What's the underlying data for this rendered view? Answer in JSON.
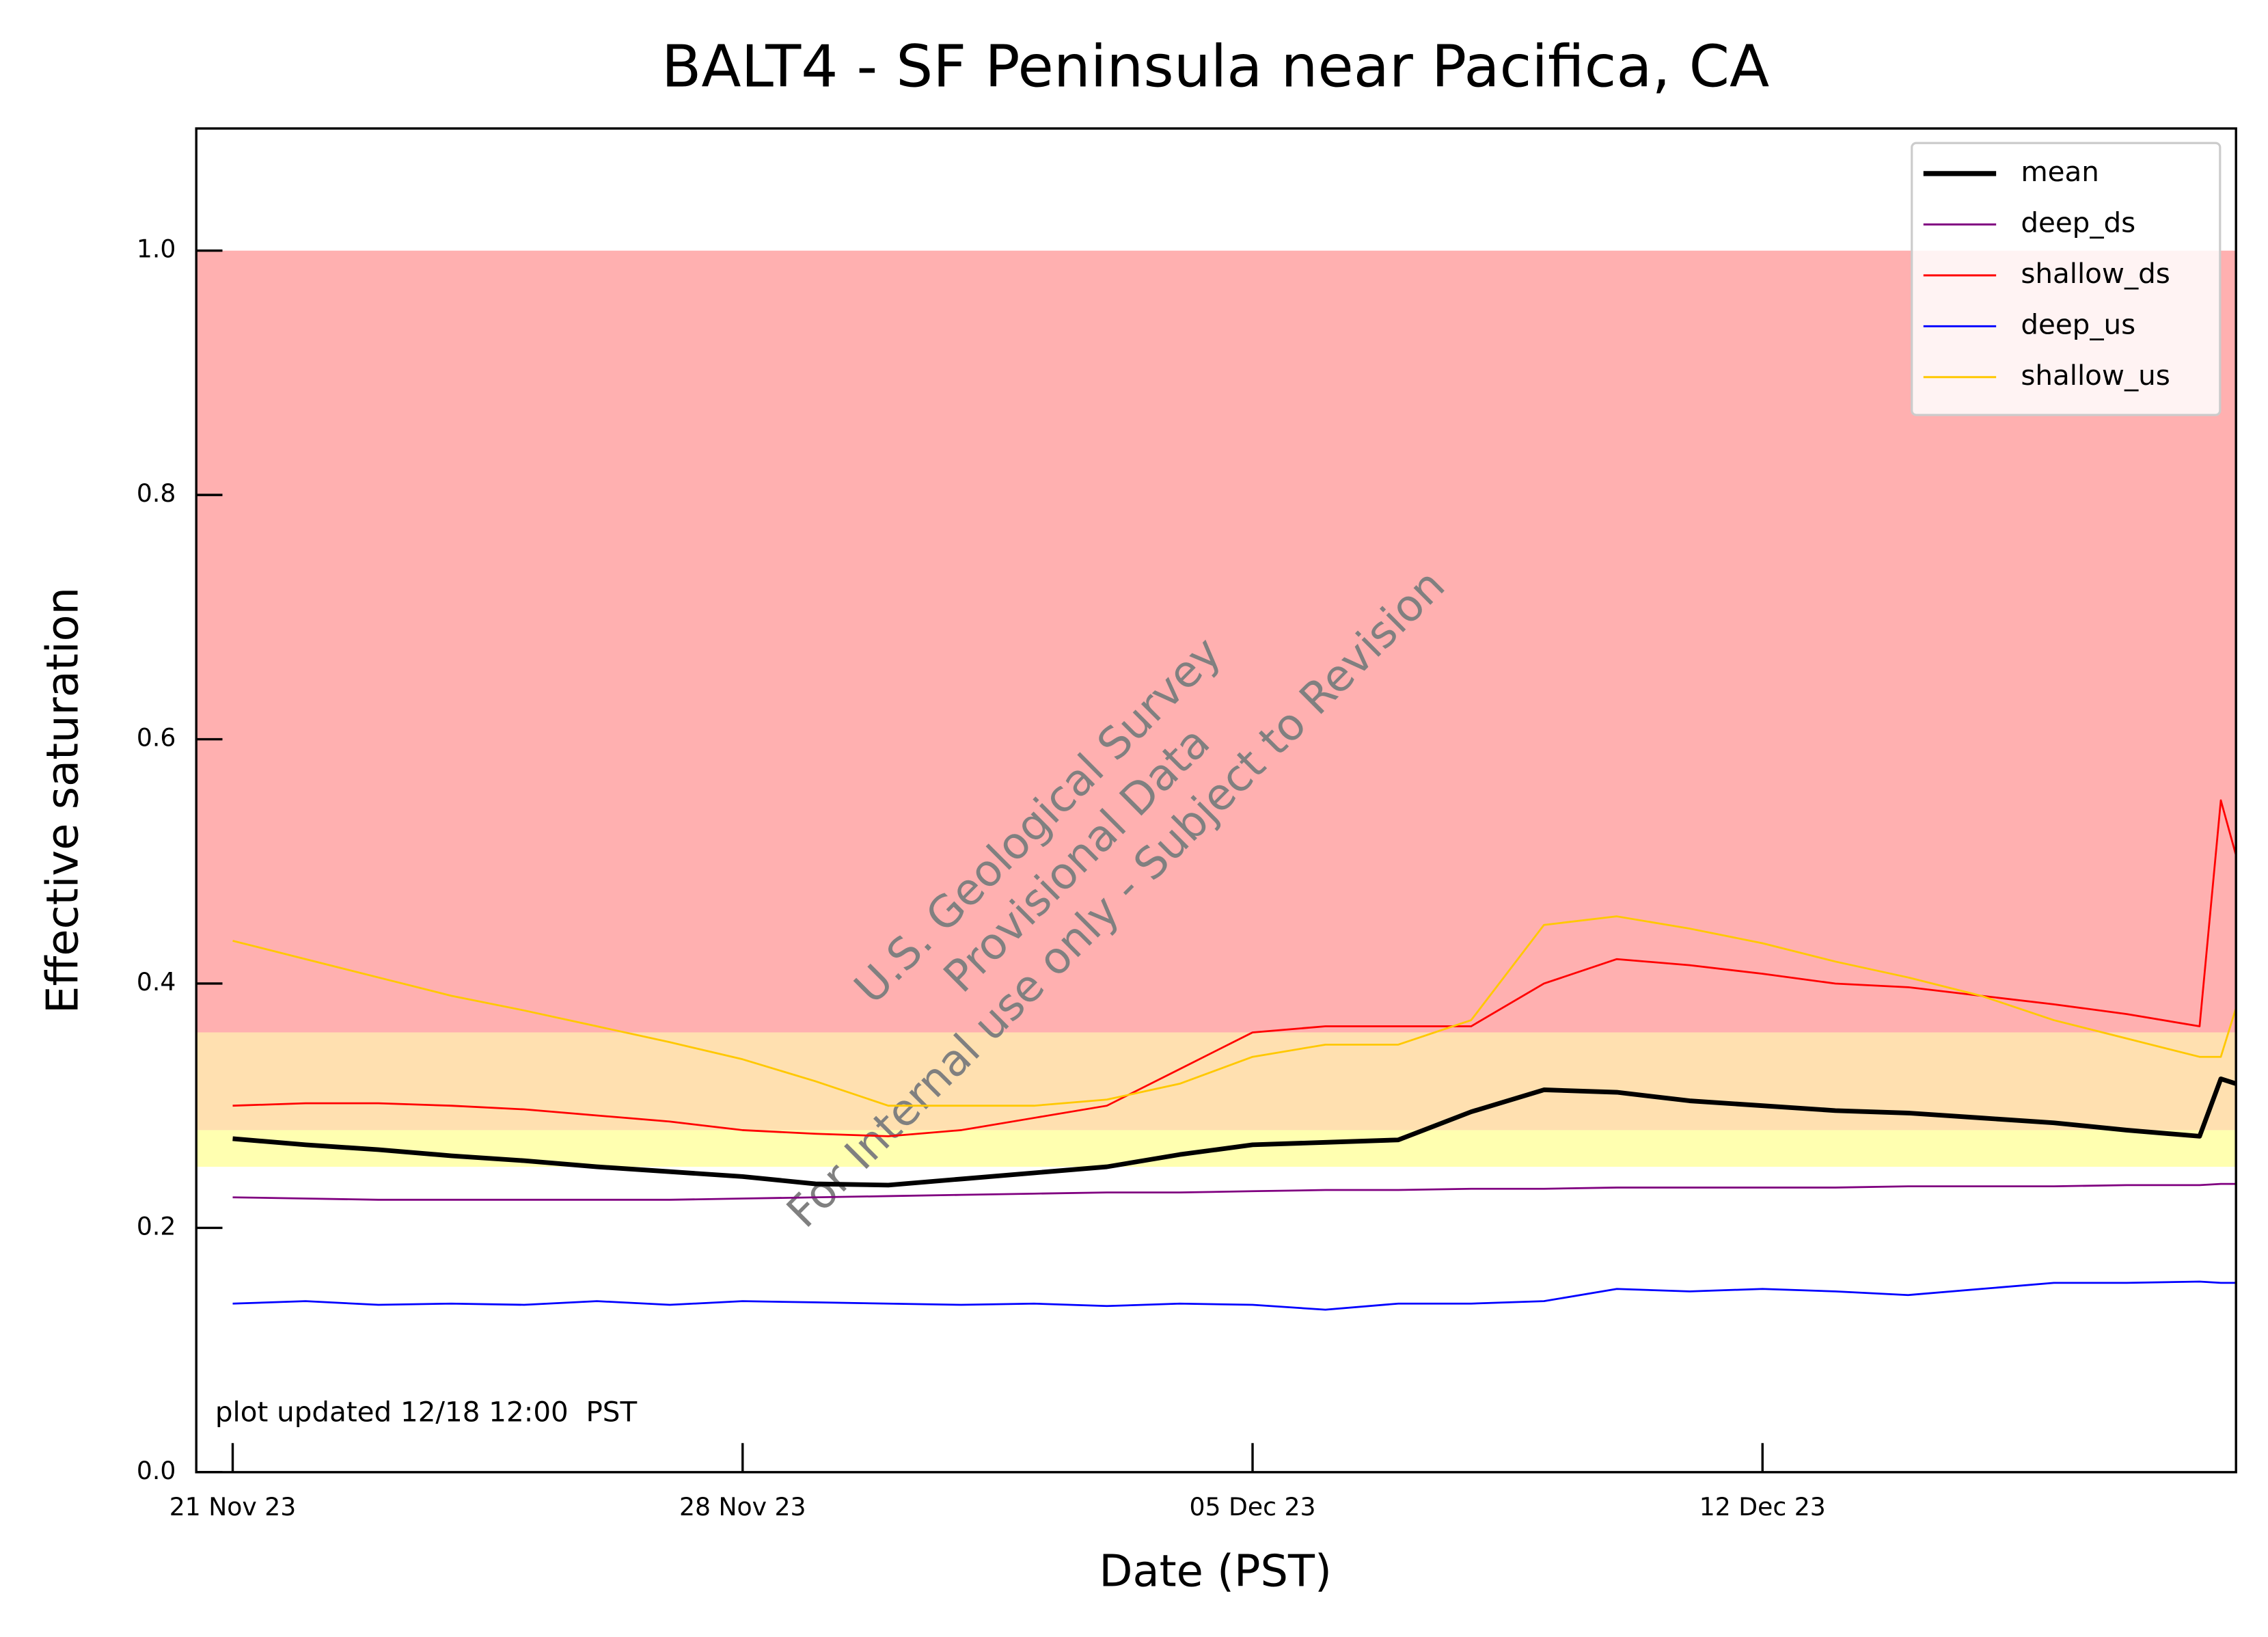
{
  "chart_data": {
    "type": "line",
    "title": "BALT4 - SF Peninsula near Pacifica, CA",
    "x_label": "Date (PST)",
    "y_label": "Effective saturation",
    "annotation": "plot updated 12/18 12:00  PST",
    "watermark": [
      "U.S. Geological Survey",
      "Provisional Data",
      "For Internal use only - Subject to Revision"
    ],
    "x": [
      "2023-11-21",
      "2023-11-22",
      "2023-11-23",
      "2023-11-24",
      "2023-11-25",
      "2023-11-26",
      "2023-11-27",
      "2023-11-28",
      "2023-11-29",
      "2023-11-30",
      "2023-12-01",
      "2023-12-02",
      "2023-12-03",
      "2023-12-04",
      "2023-12-05",
      "2023-12-06",
      "2023-12-07",
      "2023-12-08",
      "2023-12-09",
      "2023-12-10",
      "2023-12-11",
      "2023-12-12",
      "2023-12-13",
      "2023-12-14",
      "2023-12-15",
      "2023-12-16",
      "2023-12-17",
      "2023-12-18",
      "2023-12-18T07:00",
      "2023-12-18T12:00"
    ],
    "xlim": [
      "2023-11-20T12:00",
      "2023-12-18T12:00"
    ],
    "xticks": [
      {
        "value": "2023-11-21",
        "label": "21 Nov 23"
      },
      {
        "value": "2023-11-28",
        "label": "28 Nov 23"
      },
      {
        "value": "2023-12-05",
        "label": "05 Dec 23"
      },
      {
        "value": "2023-12-12",
        "label": "12 Dec 23"
      }
    ],
    "ylim": [
      0,
      1.1
    ],
    "yticks": [
      {
        "value": 0,
        "label": "0.0"
      },
      0.2,
      0.4,
      0.6,
      0.8,
      {
        "value": 1,
        "label": "1.0"
      }
    ],
    "bands": [
      {
        "from": 0.36,
        "to": 1.0,
        "color": "#ffb0b0"
      },
      {
        "from": 0.28,
        "to": 0.36,
        "color": "#ffe0b0"
      },
      {
        "from": 0.25,
        "to": 0.28,
        "color": "#ffffb0"
      }
    ],
    "legend": "upper right",
    "series": [
      {
        "name": "mean",
        "color": "#000000",
        "values": [
          0.273,
          0.268,
          0.264,
          0.259,
          0.255,
          0.25,
          0.246,
          0.242,
          0.236,
          0.235,
          0.24,
          0.245,
          0.25,
          0.26,
          0.268,
          0.27,
          0.272,
          0.295,
          0.313,
          0.311,
          0.304,
          0.3,
          0.296,
          0.294,
          0.29,
          0.286,
          0.28,
          0.275,
          0.322,
          0.318
        ]
      },
      {
        "name": "deep_ds",
        "color": "#800080",
        "values": [
          0.225,
          0.224,
          0.223,
          0.223,
          0.223,
          0.223,
          0.223,
          0.224,
          0.225,
          0.226,
          0.227,
          0.228,
          0.229,
          0.229,
          0.23,
          0.231,
          0.231,
          0.232,
          0.232,
          0.233,
          0.233,
          0.233,
          0.233,
          0.234,
          0.234,
          0.234,
          0.235,
          0.235,
          0.236,
          0.236
        ]
      },
      {
        "name": "shallow_ds",
        "color": "#ff0000",
        "values": [
          0.3,
          0.302,
          0.302,
          0.3,
          0.297,
          0.292,
          0.287,
          0.28,
          0.277,
          0.275,
          0.28,
          0.29,
          0.3,
          0.33,
          0.36,
          0.365,
          0.365,
          0.365,
          0.4,
          0.42,
          0.415,
          0.408,
          0.4,
          0.397,
          0.39,
          0.383,
          0.375,
          0.365,
          0.55,
          0.505
        ]
      },
      {
        "name": "deep_us",
        "color": "#0000ff",
        "values": [
          0.138,
          0.14,
          0.137,
          0.138,
          0.137,
          0.14,
          0.137,
          0.14,
          0.139,
          0.138,
          0.137,
          0.138,
          0.136,
          0.138,
          0.137,
          0.133,
          0.138,
          0.138,
          0.14,
          0.15,
          0.148,
          0.15,
          0.148,
          0.145,
          0.15,
          0.155,
          0.155,
          0.156,
          0.155,
          0.155
        ]
      },
      {
        "name": "shallow_us",
        "color": "#ffc800",
        "values": [
          0.435,
          0.42,
          0.405,
          0.39,
          0.378,
          0.365,
          0.352,
          0.338,
          0.32,
          0.3,
          0.3,
          0.3,
          0.305,
          0.318,
          0.34,
          0.35,
          0.35,
          0.37,
          0.448,
          0.455,
          0.445,
          0.433,
          0.418,
          0.405,
          0.39,
          0.37,
          0.355,
          0.34,
          0.34,
          0.38
        ]
      }
    ]
  }
}
